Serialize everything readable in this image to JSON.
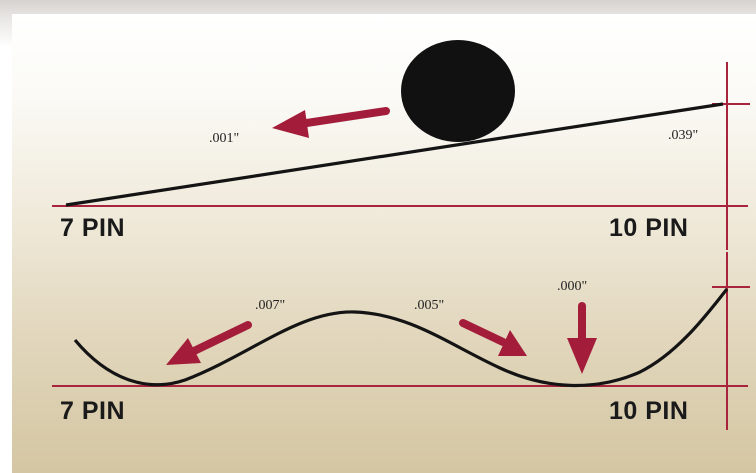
{
  "diagram": {
    "top": {
      "left_label": "7 PIN",
      "right_label": "10 PIN",
      "measure_left": ".001\"",
      "measure_right": ".039\""
    },
    "bottom": {
      "left_label": "7 PIN",
      "right_label": "10 PIN",
      "measure_1": ".007\"",
      "measure_2": ".005\"",
      "measure_3": ".000\""
    },
    "colors": {
      "baseline": "#a8243d",
      "arrow": "#a31d3a",
      "curve": "#141414",
      "ball": "#111111"
    }
  }
}
